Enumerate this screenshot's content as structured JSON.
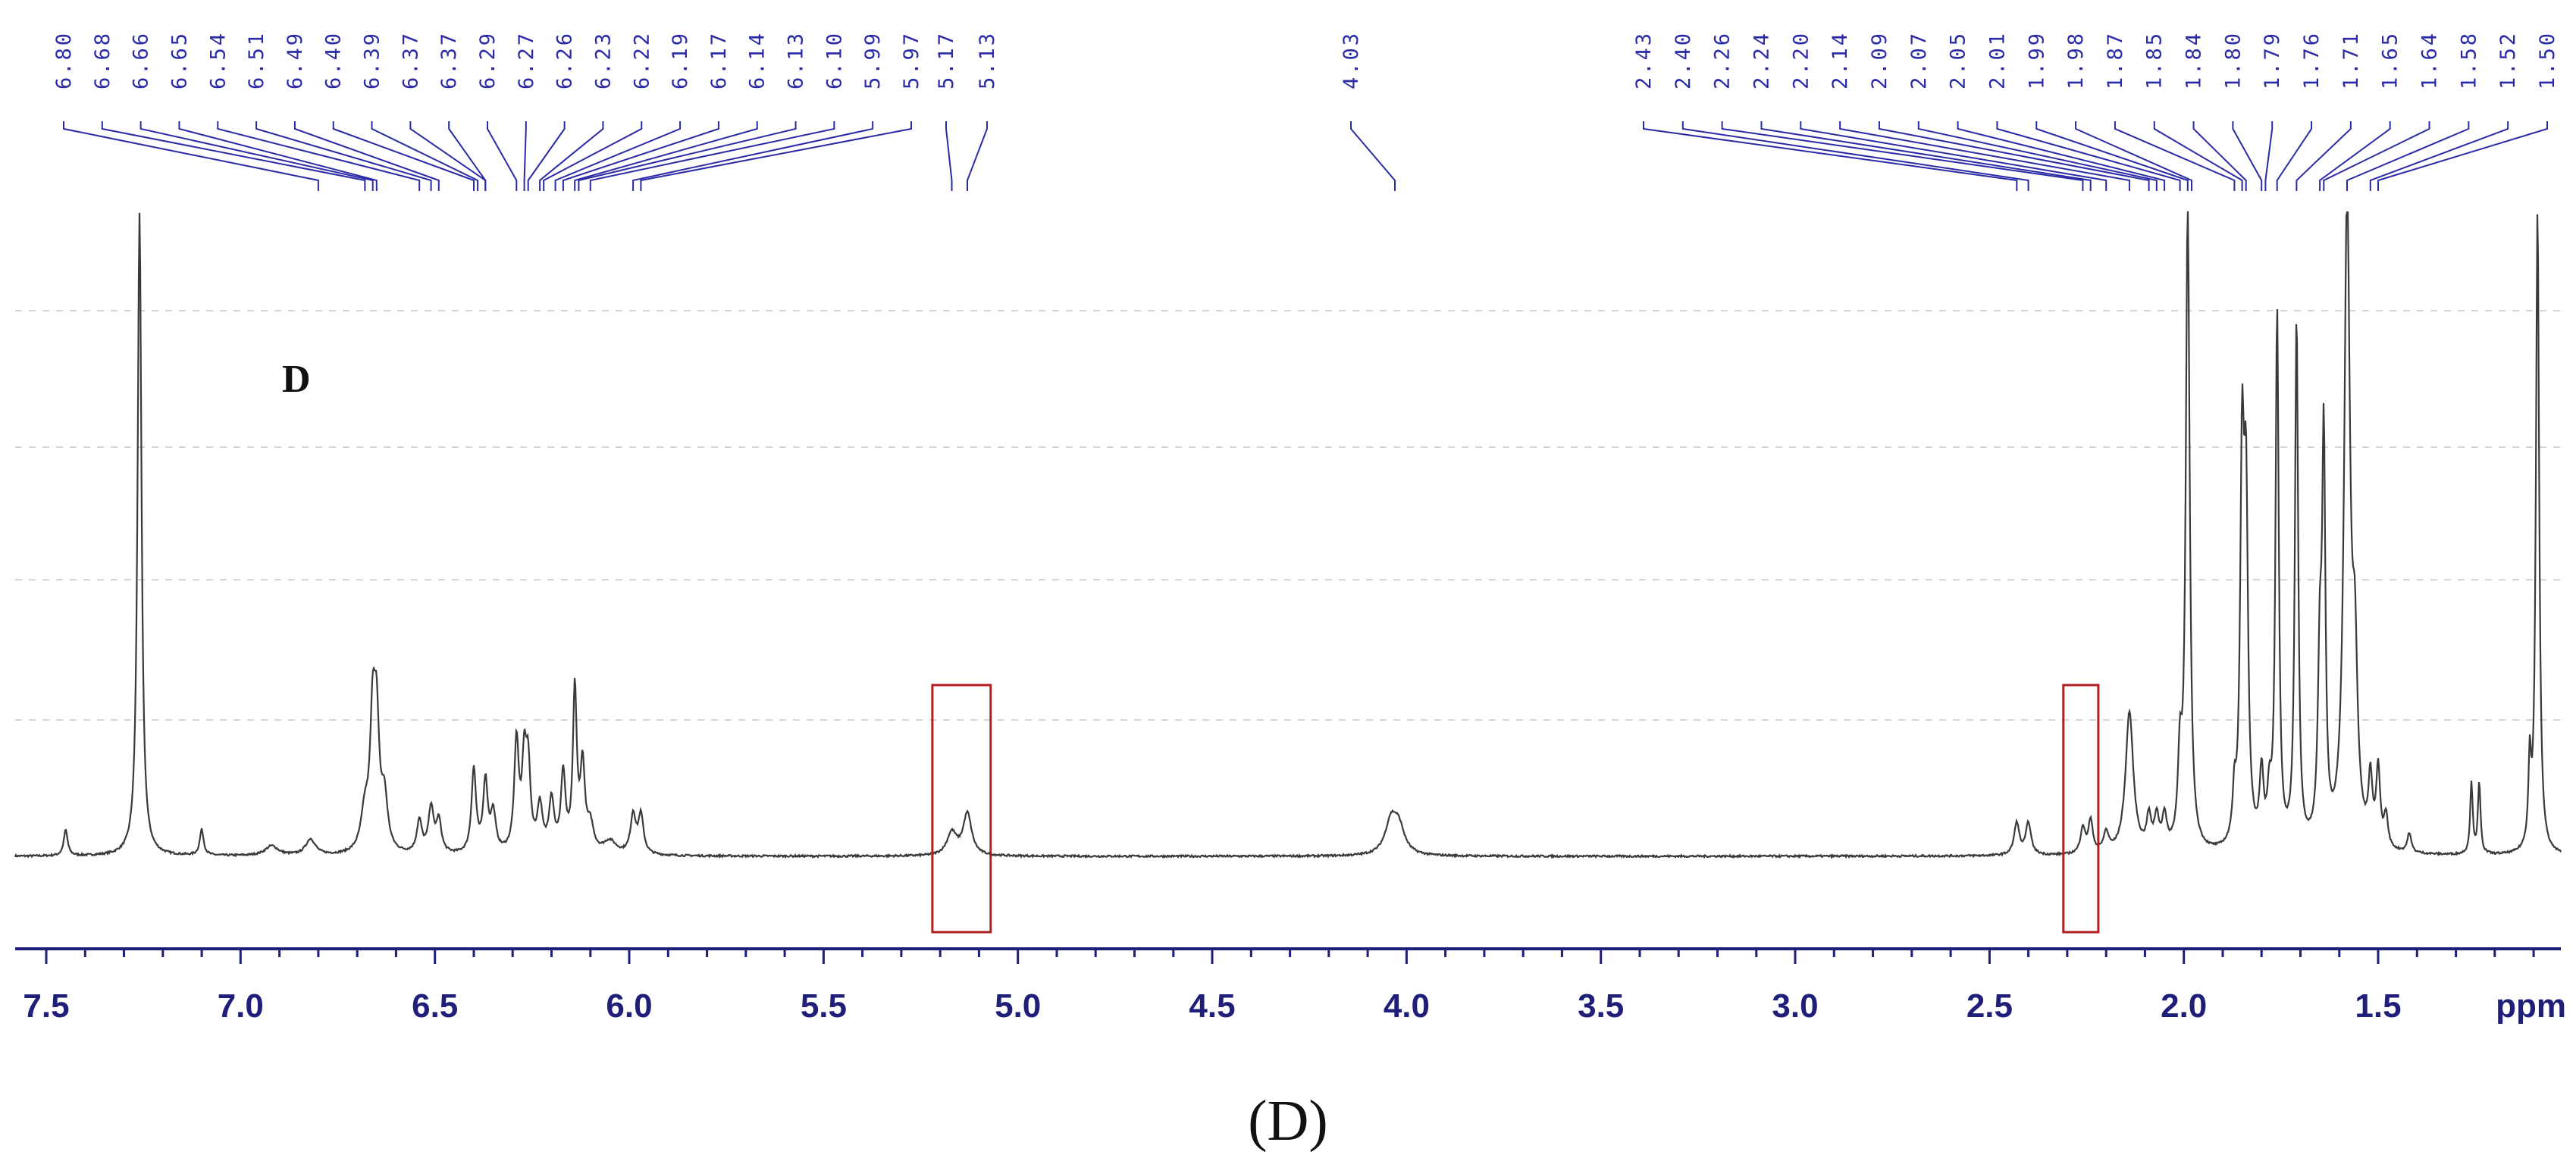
{
  "chart_data": {
    "type": "line",
    "spectrum": "1H NMR",
    "panel_label": "D",
    "caption": "(D)",
    "x_unit": "ppm",
    "xlim": [
      7.58,
      1.03
    ],
    "x_reversed": true,
    "x_ticks": [
      "7.5",
      "7.0",
      "6.5",
      "6.0",
      "5.5",
      "5.0",
      "4.5",
      "4.0",
      "3.5",
      "3.0",
      "2.5",
      "2.0",
      "1.5"
    ],
    "grid": "horizontal dashed",
    "colors": {
      "trace": "#3a3a3a",
      "annotation": "#2a2aa6",
      "axis": "#1f1f7a",
      "highlight": "#b02020"
    },
    "peak_labels": [
      "6.80",
      "6.68",
      "6.66",
      "6.65",
      "6.54",
      "6.51",
      "6.49",
      "6.40",
      "6.39",
      "6.37",
      "6.37",
      "6.29",
      "6.27",
      "6.26",
      "6.23",
      "6.22",
      "6.19",
      "6.17",
      "6.14",
      "6.13",
      "6.10",
      "5.99",
      "5.97",
      "5.17",
      "5.13",
      "4.03",
      "2.43",
      "2.40",
      "2.26",
      "2.24",
      "2.20",
      "2.14",
      "2.09",
      "2.07",
      "2.05",
      "2.01",
      "1.99",
      "1.98",
      "1.87",
      "1.85",
      "1.84",
      "1.80",
      "1.79",
      "1.76",
      "1.71",
      "1.65",
      "1.64",
      "1.58",
      "1.52",
      "1.50"
    ],
    "peaks": [
      {
        "x": 7.45,
        "h": 0.04,
        "w": 0.006
      },
      {
        "x": 7.26,
        "h": 1.0,
        "w": 0.006
      },
      {
        "x": 7.1,
        "h": 0.04,
        "w": 0.006
      },
      {
        "x": 6.92,
        "h": 0.015,
        "w": 0.02
      },
      {
        "x": 6.82,
        "h": 0.025,
        "w": 0.015
      },
      {
        "x": 6.68,
        "h": 0.06,
        "w": 0.012
      },
      {
        "x": 6.66,
        "h": 0.19,
        "w": 0.008
      },
      {
        "x": 6.65,
        "h": 0.18,
        "w": 0.008
      },
      {
        "x": 6.63,
        "h": 0.08,
        "w": 0.01
      },
      {
        "x": 6.54,
        "h": 0.05,
        "w": 0.008
      },
      {
        "x": 6.51,
        "h": 0.07,
        "w": 0.008
      },
      {
        "x": 6.49,
        "h": 0.05,
        "w": 0.008
      },
      {
        "x": 6.4,
        "h": 0.13,
        "w": 0.007
      },
      {
        "x": 6.37,
        "h": 0.11,
        "w": 0.007
      },
      {
        "x": 6.35,
        "h": 0.06,
        "w": 0.008
      },
      {
        "x": 6.29,
        "h": 0.17,
        "w": 0.007
      },
      {
        "x": 6.27,
        "h": 0.13,
        "w": 0.007
      },
      {
        "x": 6.26,
        "h": 0.12,
        "w": 0.007
      },
      {
        "x": 6.23,
        "h": 0.07,
        "w": 0.008
      },
      {
        "x": 6.2,
        "h": 0.08,
        "w": 0.008
      },
      {
        "x": 6.17,
        "h": 0.12,
        "w": 0.007
      },
      {
        "x": 6.14,
        "h": 0.25,
        "w": 0.006
      },
      {
        "x": 6.12,
        "h": 0.13,
        "w": 0.007
      },
      {
        "x": 6.1,
        "h": 0.04,
        "w": 0.01
      },
      {
        "x": 6.05,
        "h": 0.02,
        "w": 0.02
      },
      {
        "x": 5.99,
        "h": 0.06,
        "w": 0.008
      },
      {
        "x": 5.97,
        "h": 0.06,
        "w": 0.008
      },
      {
        "x": 5.17,
        "h": 0.035,
        "w": 0.015
      },
      {
        "x": 5.13,
        "h": 0.065,
        "w": 0.013
      },
      {
        "x": 4.04,
        "h": 0.05,
        "w": 0.018
      },
      {
        "x": 4.02,
        "h": 0.04,
        "w": 0.018
      },
      {
        "x": 2.43,
        "h": 0.05,
        "w": 0.008
      },
      {
        "x": 2.4,
        "h": 0.05,
        "w": 0.008
      },
      {
        "x": 2.26,
        "h": 0.04,
        "w": 0.007
      },
      {
        "x": 2.24,
        "h": 0.05,
        "w": 0.007
      },
      {
        "x": 2.2,
        "h": 0.03,
        "w": 0.008
      },
      {
        "x": 2.14,
        "h": 0.22,
        "w": 0.012
      },
      {
        "x": 2.09,
        "h": 0.05,
        "w": 0.007
      },
      {
        "x": 2.07,
        "h": 0.05,
        "w": 0.007
      },
      {
        "x": 2.05,
        "h": 0.05,
        "w": 0.007
      },
      {
        "x": 2.01,
        "h": 0.13,
        "w": 0.006
      },
      {
        "x": 1.99,
        "h": 1.0,
        "w": 0.006
      },
      {
        "x": 1.87,
        "h": 0.07,
        "w": 0.005
      },
      {
        "x": 1.85,
        "h": 0.58,
        "w": 0.006
      },
      {
        "x": 1.84,
        "h": 0.5,
        "w": 0.006
      },
      {
        "x": 1.8,
        "h": 0.11,
        "w": 0.006
      },
      {
        "x": 1.78,
        "h": 0.07,
        "w": 0.006
      },
      {
        "x": 1.76,
        "h": 0.83,
        "w": 0.005
      },
      {
        "x": 1.71,
        "h": 0.82,
        "w": 0.005
      },
      {
        "x": 1.65,
        "h": 0.27,
        "w": 0.006
      },
      {
        "x": 1.64,
        "h": 0.6,
        "w": 0.005
      },
      {
        "x": 1.58,
        "h": 1.0,
        "w": 0.009
      },
      {
        "x": 1.56,
        "h": 0.25,
        "w": 0.008
      },
      {
        "x": 1.52,
        "h": 0.1,
        "w": 0.006
      },
      {
        "x": 1.5,
        "h": 0.12,
        "w": 0.006
      },
      {
        "x": 1.48,
        "h": 0.05,
        "w": 0.006
      },
      {
        "x": 1.42,
        "h": 0.03,
        "w": 0.006
      },
      {
        "x": 1.26,
        "h": 0.11,
        "w": 0.004
      },
      {
        "x": 1.24,
        "h": 0.11,
        "w": 0.004
      },
      {
        "x": 1.11,
        "h": 0.13,
        "w": 0.004
      },
      {
        "x": 1.09,
        "h": 1.0,
        "w": 0.005
      }
    ],
    "highlight_regions_ppm": [
      [
        5.22,
        5.07
      ],
      [
        2.31,
        2.22
      ]
    ]
  }
}
